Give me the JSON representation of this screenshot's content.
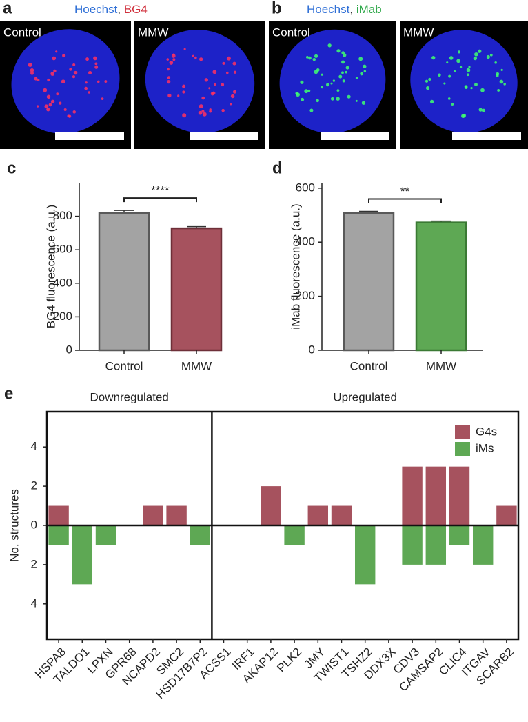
{
  "images": [
    {
      "letter": "a",
      "label_parts": [
        "Hoechst",
        ", ",
        "BG4"
      ],
      "label_colors": [
        "#2f6fd6",
        "#333333",
        "#d0303c"
      ],
      "dot_color": "#ff3060",
      "panels": [
        "Control",
        "MMW"
      ]
    },
    {
      "letter": "b",
      "label_parts": [
        "Hoechst",
        ", ",
        "iMab"
      ],
      "label_colors": [
        "#2f6fd6",
        "#333333",
        "#2fa84a"
      ],
      "dot_color": "#40ff70",
      "panels": [
        "Control",
        "MMW"
      ]
    }
  ],
  "chart_data": [
    {
      "type": "bar",
      "letter": "c",
      "ylabel": "BG4 fluorescence (a.u.)",
      "categories": [
        "Control",
        "MMW"
      ],
      "values": [
        820,
        728
      ],
      "errors": [
        15,
        10
      ],
      "colors": [
        "#a3a3a3",
        "#a6525e"
      ],
      "edge_colors": [
        "#595959",
        "#6e2f38"
      ],
      "ylim": [
        0,
        1000
      ],
      "yticks": [
        0,
        200,
        400,
        600,
        800
      ],
      "annotation": "****"
    },
    {
      "type": "bar",
      "letter": "d",
      "ylabel": "iMab fluorescence (a.u.)",
      "categories": [
        "Control",
        "MMW"
      ],
      "values": [
        508,
        473
      ],
      "errors": [
        6,
        5
      ],
      "colors": [
        "#a3a3a3",
        "#5ea854"
      ],
      "edge_colors": [
        "#595959",
        "#3b7a34"
      ],
      "ylim": [
        0,
        620
      ],
      "yticks": [
        0,
        200,
        400,
        600
      ],
      "annotation": "**"
    },
    {
      "type": "diverging_bar",
      "letter": "e",
      "ylabel": "No. structures",
      "groups": [
        {
          "label": "Downregulated",
          "count": 7
        },
        {
          "label": "Upregulated",
          "count": 13
        }
      ],
      "categories": [
        "HSPA8",
        "TALDO1",
        "LPXN",
        "GPR68",
        "NCAPD2",
        "SMC2",
        "HSD17B7P2",
        "ACSS1",
        "IRF1",
        "AKAP12",
        "PLK2",
        "JMY",
        "TWIST1",
        "TSHZ2",
        "DDX3X",
        "CDV3",
        "CAMSAP2",
        "CLIC4",
        "ITGAV",
        "SCARB2"
      ],
      "series": [
        {
          "name": "G4s",
          "color": "#a6525e",
          "values": [
            1,
            0,
            0,
            0,
            1,
            1,
            0,
            0,
            0,
            2,
            0,
            1,
            1,
            0,
            0,
            3,
            3,
            3,
            0,
            1
          ]
        },
        {
          "name": "iMs",
          "color": "#5ea854",
          "values": [
            -1,
            -3,
            -1,
            0,
            0,
            0,
            -1,
            0,
            0,
            0,
            -1,
            0,
            0,
            -3,
            0,
            -2,
            -2,
            -1,
            -2,
            0
          ]
        }
      ],
      "ylim": [
        -5.8,
        5.8
      ],
      "yticks": [
        {
          "value": -4,
          "label": "4"
        },
        {
          "value": -2,
          "label": "2"
        },
        0,
        2,
        4
      ],
      "legend": "top-right"
    }
  ]
}
